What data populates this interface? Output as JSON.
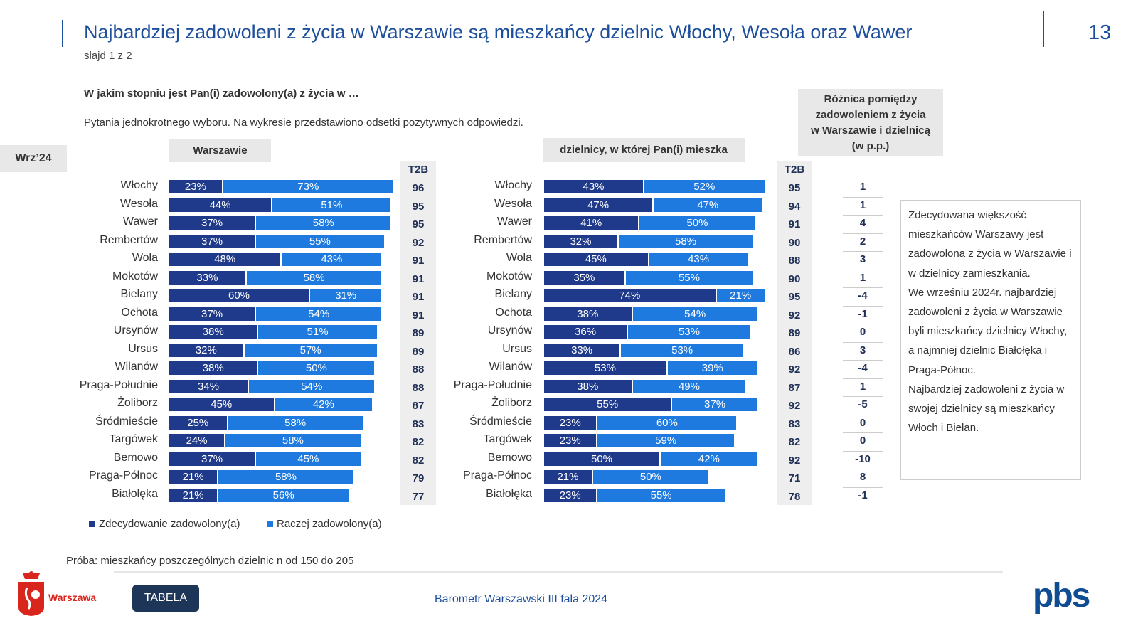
{
  "header": {
    "title": "Najbardziej zadowoleni z życia w Warszawie są mieszkańcy dzielnic Włochy, Wesoła oraz Wawer",
    "subtitle": "slajd 1 z 2",
    "page_number": "13"
  },
  "question": "W jakim stopniu jest Pan(i) zadowolony(a) z życia w …",
  "note": "Pytania jednokrotnego wyboru. Na wykresie przedstawiono odsetki pozytywnych odpowiedzi.",
  "wave": "Wrz’24",
  "diff_header": [
    "Różnica pomiędzy",
    "zadowoleniem z życia",
    "w Warszawie i dzielnicą",
    "(w p.p.)"
  ],
  "commentary": [
    "Zdecydowana większość mieszkańców Warszawy jest zadowolona z życia w Warszawie i w dzielnicy zamieszkania.",
    "We wrześniu 2024r. najbardziej zadowoleni z życia w Warszawie byli mieszkańcy dzielnicy Włochy, a najmniej dzielnic Białołęka i Praga-Północ.",
    "Najbardziej zadowoleni z życia w swojej dzielnicy są mieszkańcy Włoch i Bielan."
  ],
  "sample": "Próba: mieszkańcy poszczególnych dzielnic n od 150 do 205",
  "tabela_button": "TABELA",
  "footer": "Barometr Warszawski III fala 2024",
  "logo_left": "Warszawa",
  "logo_right": "pbs",
  "colors": {
    "dark": "#1f3a8a",
    "light": "#1f7ae0",
    "title": "#1d4f9c"
  },
  "chart_data": [
    {
      "type": "bar",
      "stacked": true,
      "orientation": "horizontal",
      "title": "Warszawie",
      "t2b_label": "T2B",
      "categories": [
        "Włochy",
        "Wesoła",
        "Wawer",
        "Rembertów",
        "Wola",
        "Mokotów",
        "Bielany",
        "Ochota",
        "Ursynów",
        "Ursus",
        "Wilanów",
        "Praga-Południe",
        "Żoliborz",
        "Śródmieście",
        "Targówek",
        "Bemowo",
        "Praga-Północ",
        "Białołęka"
      ],
      "series": [
        {
          "name": "Zdecydowanie zadowolony(a)",
          "values": [
            23,
            44,
            37,
            37,
            48,
            33,
            60,
            37,
            38,
            32,
            38,
            34,
            45,
            25,
            24,
            37,
            21,
            21
          ]
        },
        {
          "name": "Raczej zadowolony(a)",
          "values": [
            73,
            51,
            58,
            55,
            43,
            58,
            31,
            54,
            51,
            57,
            50,
            54,
            42,
            58,
            58,
            45,
            58,
            56
          ]
        }
      ],
      "t2b": [
        96,
        95,
        95,
        92,
        91,
        91,
        91,
        91,
        89,
        89,
        88,
        88,
        87,
        83,
        82,
        82,
        79,
        77
      ]
    },
    {
      "type": "bar",
      "stacked": true,
      "orientation": "horizontal",
      "title": "dzielnicy, w której Pan(i) mieszka",
      "t2b_label": "T2B",
      "categories": [
        "Włochy",
        "Wesoła",
        "Wawer",
        "Rembertów",
        "Wola",
        "Mokotów",
        "Bielany",
        "Ochota",
        "Ursynów",
        "Ursus",
        "Wilanów",
        "Praga-Południe",
        "Żoliborz",
        "Śródmieście",
        "Targówek",
        "Bemowo",
        "Praga-Północ",
        "Białołęka"
      ],
      "series": [
        {
          "name": "Zdecydowanie zadowolony(a)",
          "values": [
            43,
            47,
            41,
            32,
            45,
            35,
            74,
            38,
            36,
            33,
            53,
            38,
            55,
            23,
            23,
            50,
            21,
            23
          ]
        },
        {
          "name": "Raczej zadowolony(a)",
          "values": [
            52,
            47,
            50,
            58,
            43,
            55,
            21,
            54,
            53,
            53,
            39,
            49,
            37,
            60,
            59,
            42,
            50,
            55
          ]
        }
      ],
      "t2b": [
        95,
        94,
        91,
        90,
        88,
        90,
        95,
        92,
        89,
        86,
        92,
        87,
        92,
        83,
        82,
        92,
        71,
        78
      ],
      "difference": [
        1,
        1,
        4,
        2,
        3,
        1,
        -4,
        -1,
        0,
        3,
        -4,
        1,
        -5,
        0,
        0,
        -10,
        8,
        -1
      ]
    }
  ]
}
